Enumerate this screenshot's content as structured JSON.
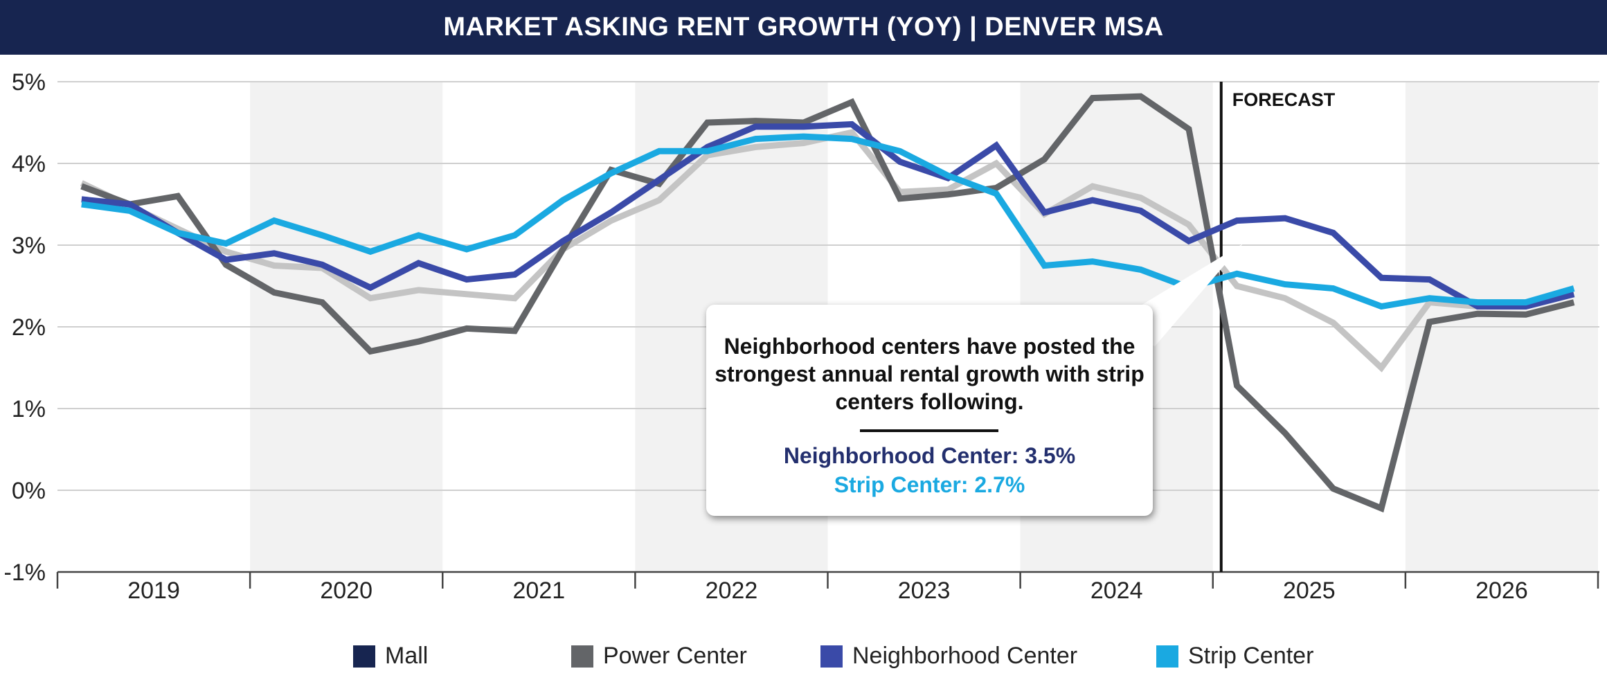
{
  "chart_data": {
    "type": "line",
    "title": "MARKET ASKING RENT GROWTH (YOY) | DENVER MSA",
    "y_tick_labels": [
      "5%",
      "4%",
      "3%",
      "2%",
      "1%",
      "0%",
      "-1%"
    ],
    "ylim": [
      -1,
      5
    ],
    "x_year_labels": [
      "2019",
      "2020",
      "2021",
      "2022",
      "2023",
      "2024",
      "2025",
      "2026"
    ],
    "grid": "horizontal",
    "forecast_label": "FORECAST",
    "forecast_start": "2025 Q1",
    "legend_position": "bottom",
    "x": [
      "2019 Q1",
      "2019 Q2",
      "2019 Q3",
      "2019 Q4",
      "2020 Q1",
      "2020 Q2",
      "2020 Q3",
      "2020 Q4",
      "2021 Q1",
      "2021 Q2",
      "2021 Q3",
      "2021 Q4",
      "2022 Q1",
      "2022 Q2",
      "2022 Q3",
      "2022 Q4",
      "2023 Q1",
      "2023 Q2",
      "2023 Q3",
      "2023 Q4",
      "2024 Q1",
      "2024 Q2",
      "2024 Q3",
      "2024 Q4",
      "2025 Q1",
      "2025 Q2",
      "2025 Q3",
      "2025 Q4",
      "2026 Q1",
      "2026 Q2",
      "2026 Q3",
      "2026 Q4"
    ],
    "series": [
      {
        "name": "Mall",
        "color": "#172550",
        "values": [
          3.76,
          3.48,
          3.2,
          2.92,
          2.75,
          2.72,
          2.35,
          2.45,
          2.4,
          2.35,
          2.95,
          3.3,
          3.55,
          4.1,
          4.2,
          4.25,
          4.38,
          3.65,
          3.68,
          4.0,
          3.38,
          3.72,
          3.58,
          3.25,
          2.5,
          2.35,
          2.05,
          1.5,
          2.3,
          2.25,
          2.28,
          2.4
        ]
      },
      {
        "name": "Power Center",
        "color": "#636568",
        "values": [
          3.72,
          3.5,
          3.6,
          2.76,
          2.42,
          2.3,
          1.7,
          1.82,
          1.98,
          1.95,
          2.95,
          3.92,
          3.75,
          4.5,
          4.52,
          4.5,
          4.75,
          3.57,
          3.62,
          3.7,
          4.05,
          4.8,
          4.82,
          4.42,
          1.28,
          0.7,
          0.02,
          -0.22,
          2.06,
          2.16,
          2.15,
          2.3
        ]
      },
      {
        "name": "Neighborhood Center",
        "color": "#3a4aa8",
        "values": [
          3.56,
          3.5,
          3.15,
          2.82,
          2.9,
          2.76,
          2.48,
          2.78,
          2.58,
          2.64,
          3.05,
          3.4,
          3.8,
          4.2,
          4.45,
          4.45,
          4.48,
          4.02,
          3.82,
          4.22,
          3.4,
          3.55,
          3.42,
          3.05,
          3.3,
          3.33,
          3.15,
          2.6,
          2.58,
          2.25,
          2.25,
          2.4
        ]
      },
      {
        "name": "Strip Center",
        "color": "#1aa9e1",
        "values": [
          3.5,
          3.42,
          3.15,
          3.02,
          3.3,
          3.12,
          2.92,
          3.12,
          2.95,
          3.12,
          3.55,
          3.88,
          4.15,
          4.15,
          4.3,
          4.33,
          4.3,
          4.15,
          3.85,
          3.63,
          2.75,
          2.8,
          2.7,
          2.48,
          2.65,
          2.52,
          2.47,
          2.25,
          2.35,
          2.3,
          2.3,
          2.47
        ]
      }
    ],
    "annotation": {
      "text": "Neighborhood centers have posted the strongest annual rental growth with strip centers following.",
      "stat_1": "Neighborhood Center:  3.5%",
      "stat_2": "Strip Center:  2.7%"
    }
  }
}
